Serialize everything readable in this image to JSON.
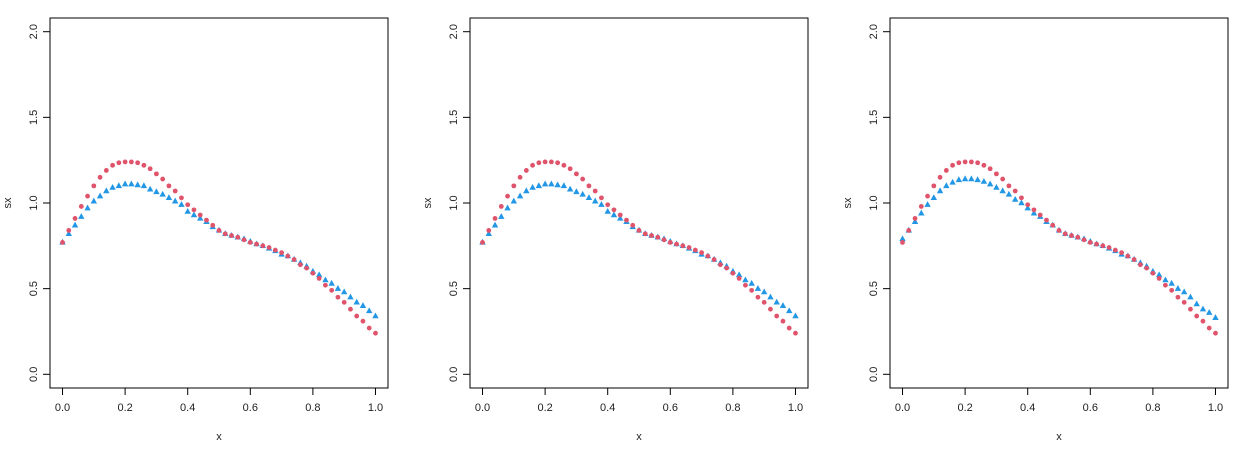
{
  "chart_data": [
    {
      "type": "scatter",
      "xlabel": "x",
      "ylabel": "sx",
      "xlim": [
        -0.04,
        1.04
      ],
      "ylim": [
        -0.08,
        2.08
      ],
      "xticks": [
        {
          "value": 0,
          "label": "0.0"
        },
        0.2,
        0.4,
        0.6,
        0.8,
        {
          "value": 1,
          "label": "1.0"
        }
      ],
      "yticks": [
        {
          "value": 0,
          "label": "0.0"
        },
        0.5,
        {
          "value": 1,
          "label": "1.0"
        },
        1.5,
        {
          "value": 2,
          "label": "2.0"
        }
      ],
      "x": [
        0,
        0.02,
        0.04,
        0.06,
        0.08,
        0.1,
        0.12,
        0.14,
        0.16,
        0.18,
        0.2,
        0.22,
        0.24,
        0.26,
        0.28,
        0.3,
        0.32,
        0.34,
        0.36,
        0.38,
        0.4,
        0.42,
        0.44,
        0.46,
        0.48,
        0.5,
        0.52,
        0.54,
        0.56,
        0.58,
        0.6,
        0.62,
        0.64,
        0.66,
        0.68,
        0.7,
        0.72,
        0.74,
        0.76,
        0.78,
        0.8,
        0.82,
        0.84,
        0.86,
        0.88,
        0.9,
        0.92,
        0.94,
        0.96,
        0.98,
        1
      ],
      "series": [
        {
          "color": "#2297E6",
          "marker": "triangle",
          "values": [
            0.77,
            0.82,
            0.87,
            0.92,
            0.97,
            1.01,
            1.04,
            1.07,
            1.09,
            1.1,
            1.11,
            1.11,
            1.105,
            1.1,
            1.08,
            1.065,
            1.05,
            1.03,
            1.01,
            0.99,
            0.95,
            0.93,
            0.91,
            0.89,
            0.86,
            0.84,
            0.82,
            0.81,
            0.8,
            0.79,
            0.775,
            0.76,
            0.75,
            0.735,
            0.72,
            0.7,
            0.69,
            0.67,
            0.65,
            0.63,
            0.6,
            0.58,
            0.55,
            0.53,
            0.5,
            0.48,
            0.45,
            0.42,
            0.4,
            0.37,
            0.34
          ]
        },
        {
          "color": "#DF536B",
          "marker": "circle",
          "values": [
            0.77,
            0.84,
            0.91,
            0.98,
            1.04,
            1.1,
            1.15,
            1.19,
            1.22,
            1.235,
            1.24,
            1.24,
            1.235,
            1.22,
            1.2,
            1.17,
            1.14,
            1.1,
            1.07,
            1.03,
            0.99,
            0.96,
            0.93,
            0.9,
            0.87,
            0.84,
            0.82,
            0.81,
            0.8,
            0.785,
            0.77,
            0.76,
            0.75,
            0.74,
            0.725,
            0.71,
            0.69,
            0.67,
            0.64,
            0.62,
            0.59,
            0.56,
            0.52,
            0.49,
            0.45,
            0.42,
            0.38,
            0.34,
            0.31,
            0.27,
            0.24
          ]
        }
      ]
    },
    {
      "type": "scatter",
      "xlabel": "x",
      "ylabel": "sx",
      "xlim": [
        -0.04,
        1.04
      ],
      "ylim": [
        -0.08,
        2.08
      ],
      "xticks": [
        {
          "value": 0,
          "label": "0.0"
        },
        0.2,
        0.4,
        0.6,
        0.8,
        {
          "value": 1,
          "label": "1.0"
        }
      ],
      "yticks": [
        {
          "value": 0,
          "label": "0.0"
        },
        0.5,
        {
          "value": 1,
          "label": "1.0"
        },
        1.5,
        {
          "value": 2,
          "label": "2.0"
        }
      ],
      "x": [
        0,
        0.02,
        0.04,
        0.06,
        0.08,
        0.1,
        0.12,
        0.14,
        0.16,
        0.18,
        0.2,
        0.22,
        0.24,
        0.26,
        0.28,
        0.3,
        0.32,
        0.34,
        0.36,
        0.38,
        0.4,
        0.42,
        0.44,
        0.46,
        0.48,
        0.5,
        0.52,
        0.54,
        0.56,
        0.58,
        0.6,
        0.62,
        0.64,
        0.66,
        0.68,
        0.7,
        0.72,
        0.74,
        0.76,
        0.78,
        0.8,
        0.82,
        0.84,
        0.86,
        0.88,
        0.9,
        0.92,
        0.94,
        0.96,
        0.98,
        1
      ],
      "series": [
        {
          "color": "#2297E6",
          "marker": "triangle",
          "values": [
            0.77,
            0.82,
            0.87,
            0.92,
            0.97,
            1.01,
            1.04,
            1.07,
            1.09,
            1.1,
            1.11,
            1.11,
            1.105,
            1.1,
            1.08,
            1.065,
            1.05,
            1.03,
            1.01,
            0.99,
            0.95,
            0.93,
            0.91,
            0.89,
            0.86,
            0.84,
            0.82,
            0.81,
            0.8,
            0.79,
            0.775,
            0.76,
            0.75,
            0.735,
            0.72,
            0.7,
            0.69,
            0.67,
            0.65,
            0.63,
            0.6,
            0.58,
            0.55,
            0.53,
            0.5,
            0.48,
            0.45,
            0.42,
            0.4,
            0.37,
            0.34
          ]
        },
        {
          "color": "#DF536B",
          "marker": "circle",
          "values": [
            0.77,
            0.84,
            0.91,
            0.98,
            1.04,
            1.1,
            1.15,
            1.19,
            1.22,
            1.235,
            1.24,
            1.24,
            1.235,
            1.22,
            1.2,
            1.17,
            1.14,
            1.1,
            1.07,
            1.03,
            0.99,
            0.96,
            0.93,
            0.9,
            0.87,
            0.84,
            0.82,
            0.81,
            0.8,
            0.785,
            0.77,
            0.76,
            0.75,
            0.74,
            0.725,
            0.71,
            0.69,
            0.67,
            0.64,
            0.62,
            0.59,
            0.56,
            0.52,
            0.49,
            0.45,
            0.42,
            0.38,
            0.34,
            0.31,
            0.27,
            0.24
          ]
        }
      ]
    },
    {
      "type": "scatter",
      "xlabel": "x",
      "ylabel": "sx",
      "xlim": [
        -0.04,
        1.04
      ],
      "ylim": [
        -0.08,
        2.08
      ],
      "xticks": [
        {
          "value": 0,
          "label": "0.0"
        },
        0.2,
        0.4,
        0.6,
        0.8,
        {
          "value": 1,
          "label": "1.0"
        }
      ],
      "yticks": [
        {
          "value": 0,
          "label": "0.0"
        },
        0.5,
        {
          "value": 1,
          "label": "1.0"
        },
        1.5,
        {
          "value": 2,
          "label": "2.0"
        }
      ],
      "x": [
        0,
        0.02,
        0.04,
        0.06,
        0.08,
        0.1,
        0.12,
        0.14,
        0.16,
        0.18,
        0.2,
        0.22,
        0.24,
        0.26,
        0.28,
        0.3,
        0.32,
        0.34,
        0.36,
        0.38,
        0.4,
        0.42,
        0.44,
        0.46,
        0.48,
        0.5,
        0.52,
        0.54,
        0.56,
        0.58,
        0.6,
        0.62,
        0.64,
        0.66,
        0.68,
        0.7,
        0.72,
        0.74,
        0.76,
        0.78,
        0.8,
        0.82,
        0.84,
        0.86,
        0.88,
        0.9,
        0.92,
        0.94,
        0.96,
        0.98,
        1
      ],
      "series": [
        {
          "color": "#2297E6",
          "marker": "triangle",
          "values": [
            0.79,
            0.84,
            0.89,
            0.94,
            0.99,
            1.03,
            1.07,
            1.1,
            1.12,
            1.135,
            1.14,
            1.14,
            1.135,
            1.125,
            1.11,
            1.09,
            1.07,
            1.05,
            1.02,
            1,
            0.97,
            0.94,
            0.92,
            0.89,
            0.87,
            0.84,
            0.82,
            0.81,
            0.8,
            0.79,
            0.775,
            0.76,
            0.75,
            0.735,
            0.72,
            0.7,
            0.69,
            0.67,
            0.65,
            0.63,
            0.6,
            0.58,
            0.55,
            0.53,
            0.5,
            0.48,
            0.45,
            0.41,
            0.38,
            0.36,
            0.33
          ]
        },
        {
          "color": "#DF536B",
          "marker": "circle",
          "values": [
            0.77,
            0.84,
            0.91,
            0.98,
            1.04,
            1.1,
            1.15,
            1.19,
            1.22,
            1.235,
            1.24,
            1.24,
            1.235,
            1.22,
            1.2,
            1.17,
            1.14,
            1.1,
            1.07,
            1.03,
            0.99,
            0.96,
            0.93,
            0.9,
            0.87,
            0.84,
            0.82,
            0.81,
            0.8,
            0.785,
            0.77,
            0.76,
            0.75,
            0.74,
            0.725,
            0.71,
            0.69,
            0.67,
            0.64,
            0.62,
            0.59,
            0.56,
            0.52,
            0.49,
            0.45,
            0.42,
            0.38,
            0.34,
            0.31,
            0.27,
            0.24
          ]
        }
      ]
    }
  ]
}
